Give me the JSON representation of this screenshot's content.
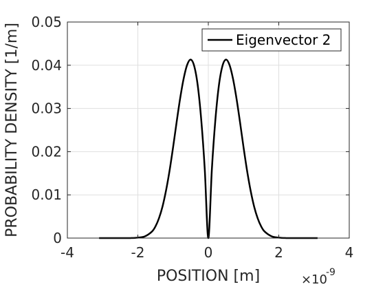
{
  "chart_data": {
    "type": "line",
    "title": "",
    "xlabel": "POSITION  [m]",
    "ylabel": "PROBABILITY DENSITY  [1/m]",
    "x_exponent_label": {
      "base": "×10",
      "exponent": "-9"
    },
    "xlim": [
      -4,
      4
    ],
    "ylim": [
      0,
      0.05
    ],
    "x_scale_factor": 1e-09,
    "x_ticks": [
      -4,
      -2,
      0,
      2,
      4
    ],
    "x_tick_labels": [
      "-4",
      "-2",
      "0",
      "2",
      "4"
    ],
    "y_ticks": [
      0,
      0.01,
      0.02,
      0.03,
      0.04,
      0.05
    ],
    "y_tick_labels": [
      "0",
      "0.01",
      "0.02",
      "0.03",
      "0.04",
      "0.05"
    ],
    "grid": true,
    "legend_position": "top-right",
    "colors": {
      "line": "#000000",
      "grid": "#dfdfdf",
      "axis": "#262626"
    },
    "series": [
      {
        "name": "Eigenvector 2",
        "x": [
          -3.1,
          -2.8,
          -2.5,
          -2.2,
          -2.0,
          -1.8,
          -1.6,
          -1.5,
          -1.4,
          -1.3,
          -1.2,
          -1.1,
          -1.0,
          -0.9,
          -0.8,
          -0.7,
          -0.6,
          -0.5,
          -0.4,
          -0.3,
          -0.2,
          -0.1,
          0.0,
          0.1,
          0.2,
          0.3,
          0.4,
          0.5,
          0.6,
          0.7,
          0.8,
          0.9,
          1.0,
          1.1,
          1.2,
          1.3,
          1.4,
          1.5,
          1.6,
          1.8,
          2.0,
          2.2,
          2.5,
          2.8,
          3.1
        ],
        "y": [
          0,
          0,
          0,
          1e-05,
          0.0001,
          0.0004,
          0.0015,
          0.0027,
          0.0046,
          0.0073,
          0.011,
          0.0156,
          0.021,
          0.0268,
          0.0323,
          0.0369,
          0.0401,
          0.0413,
          0.0398,
          0.0353,
          0.0273,
          0.0158,
          0.0,
          0.0158,
          0.0273,
          0.0353,
          0.0398,
          0.0413,
          0.0401,
          0.0369,
          0.0323,
          0.0268,
          0.021,
          0.0156,
          0.011,
          0.0073,
          0.0046,
          0.0027,
          0.0015,
          0.0004,
          0.0001,
          1e-05,
          0,
          0,
          0
        ]
      }
    ]
  }
}
